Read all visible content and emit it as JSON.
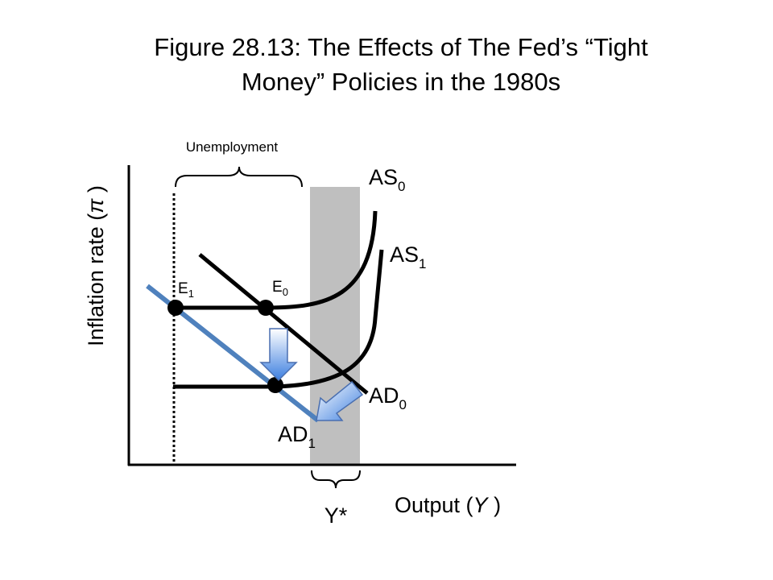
{
  "title": {
    "lines": [
      "Figure 28.13: The Effects of The Fed’s “Tight",
      "Money” Policies in the 1980s"
    ]
  },
  "y_axis_label": {
    "before": "Inflation rate (",
    "symbol": "π",
    "after": " )"
  },
  "x_axis_label": {
    "before": "Output (",
    "symbol": "Y",
    "after": " )"
  },
  "unemployment_label": "Unemployment",
  "potential_output_label": "Y*",
  "curves": [
    {
      "name": "AS",
      "subscript": "0"
    },
    {
      "name": "AS",
      "subscript": "1"
    },
    {
      "name": "AD",
      "subscript": "0"
    },
    {
      "name": "AD",
      "subscript": "1"
    }
  ],
  "points": [
    {
      "name": "E",
      "subscript": "1"
    },
    {
      "name": "E",
      "subscript": "0"
    }
  ]
}
